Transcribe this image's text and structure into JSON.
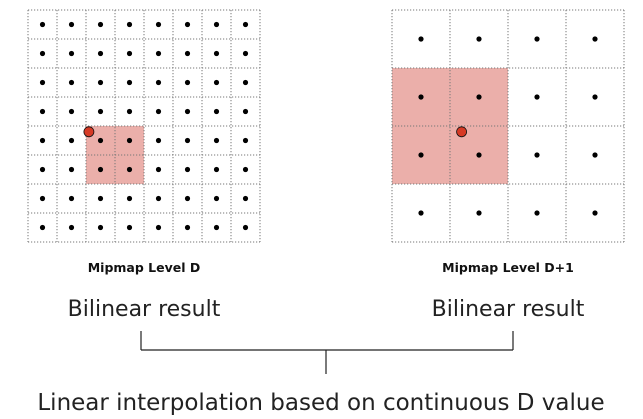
{
  "levels": [
    {
      "caption": "Mipmap Level D",
      "grid_size": 8,
      "highlight": {
        "col": 2,
        "row": 4,
        "cols": 2,
        "rows": 2
      },
      "sample": {
        "col": 2.1,
        "row": 4.2
      }
    },
    {
      "caption": "Mipmap Level D+1",
      "grid_size": 4,
      "highlight": {
        "col": 0,
        "row": 1,
        "cols": 2,
        "rows": 2
      },
      "sample": {
        "col": 1.2,
        "row": 2.1
      }
    }
  ],
  "results": {
    "left_label": "Bilinear result",
    "right_label": "Bilinear result"
  },
  "combine": {
    "label": "Linear interpolation based on continuous D value"
  },
  "colors": {
    "highlight_fill": "#ebafaa",
    "sample_point": "#d63a25",
    "texel_dot": "#000000",
    "grid_line": "#777777",
    "bracket": "#222222"
  }
}
